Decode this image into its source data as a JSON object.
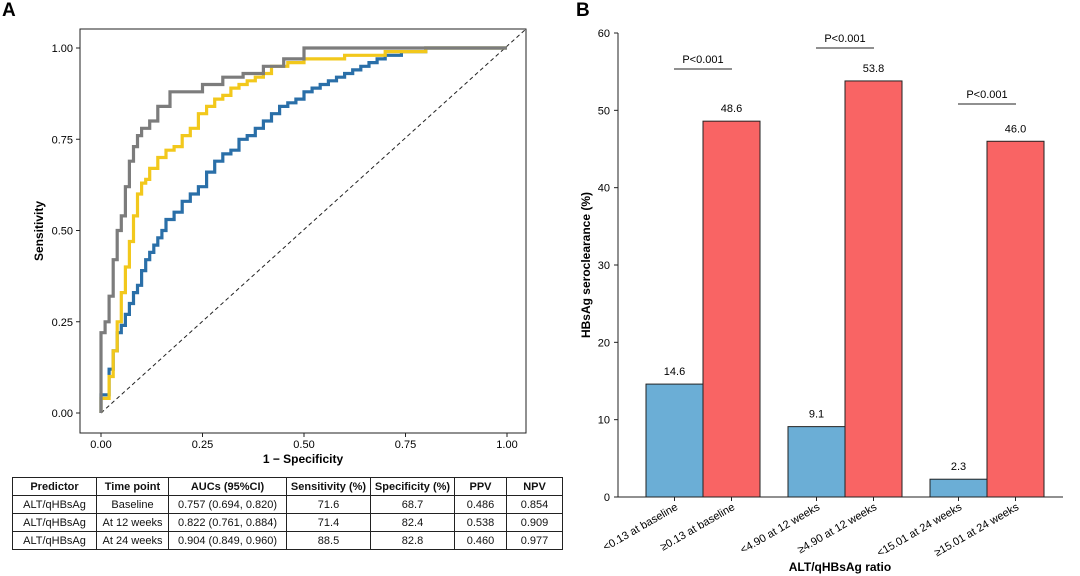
{
  "panel_labels": [
    "A",
    "B"
  ],
  "chart_data": [
    {
      "type": "line",
      "panel": "A",
      "xlabel": "1 − Specificity",
      "ylabel": "Sensitivity",
      "xlim": [
        0,
        1
      ],
      "ylim": [
        0,
        1
      ],
      "x_ticks": [
        "0.00",
        "0.25",
        "0.50",
        "0.75",
        "1.00"
      ],
      "y_ticks": [
        "0.00",
        "0.25",
        "0.50",
        "0.75",
        "1.00"
      ],
      "reference_line": "diagonal dashed",
      "series": [
        {
          "color": "#2a6fa8",
          "x": [
            0.0,
            0.02,
            0.03,
            0.04,
            0.05,
            0.06,
            0.07,
            0.08,
            0.09,
            0.1,
            0.11,
            0.12,
            0.13,
            0.14,
            0.15,
            0.16,
            0.18,
            0.2,
            0.22,
            0.24,
            0.26,
            0.28,
            0.3,
            0.32,
            0.34,
            0.36,
            0.38,
            0.4,
            0.42,
            0.44,
            0.46,
            0.48,
            0.5,
            0.52,
            0.54,
            0.56,
            0.58,
            0.6,
            0.62,
            0.64,
            0.66,
            0.68,
            0.7,
            0.72,
            0.74,
            0.76,
            0.78,
            0.8,
            0.82,
            0.84,
            0.86,
            0.88,
            0.9,
            1.0
          ],
          "y": [
            0.0,
            0.05,
            0.12,
            0.17,
            0.22,
            0.24,
            0.27,
            0.3,
            0.33,
            0.35,
            0.39,
            0.42,
            0.44,
            0.46,
            0.48,
            0.5,
            0.53,
            0.55,
            0.58,
            0.6,
            0.62,
            0.66,
            0.69,
            0.71,
            0.72,
            0.75,
            0.76,
            0.78,
            0.8,
            0.82,
            0.84,
            0.85,
            0.86,
            0.88,
            0.89,
            0.9,
            0.91,
            0.92,
            0.93,
            0.94,
            0.95,
            0.96,
            0.97,
            0.98,
            0.98,
            0.99,
            0.99,
            0.99,
            1.0,
            1.0,
            1.0,
            1.0,
            1.0,
            1.0
          ]
        },
        {
          "color": "#f2c81c",
          "x": [
            0.0,
            0.02,
            0.03,
            0.04,
            0.05,
            0.06,
            0.07,
            0.08,
            0.09,
            0.1,
            0.11,
            0.12,
            0.14,
            0.16,
            0.18,
            0.2,
            0.22,
            0.24,
            0.26,
            0.28,
            0.3,
            0.32,
            0.34,
            0.36,
            0.38,
            0.4,
            0.42,
            0.46,
            0.5,
            0.55,
            0.6,
            0.65,
            0.7,
            0.75,
            0.8,
            0.83,
            1.0
          ],
          "y": [
            0.0,
            0.04,
            0.1,
            0.17,
            0.25,
            0.33,
            0.4,
            0.47,
            0.54,
            0.6,
            0.63,
            0.64,
            0.67,
            0.7,
            0.72,
            0.73,
            0.76,
            0.78,
            0.82,
            0.84,
            0.86,
            0.87,
            0.89,
            0.9,
            0.91,
            0.92,
            0.93,
            0.95,
            0.96,
            0.97,
            0.97,
            0.98,
            0.98,
            0.99,
            0.99,
            1.0,
            1.0
          ]
        },
        {
          "color": "#7c7c7c",
          "x": [
            0.0,
            0.01,
            0.02,
            0.03,
            0.04,
            0.05,
            0.06,
            0.07,
            0.08,
            0.09,
            0.1,
            0.12,
            0.14,
            0.17,
            0.2,
            0.25,
            0.3,
            0.35,
            0.4,
            0.45,
            0.5,
            0.53,
            0.58,
            0.65,
            0.75,
            0.82,
            1.0
          ],
          "y": [
            0.0,
            0.22,
            0.25,
            0.32,
            0.42,
            0.5,
            0.54,
            0.62,
            0.69,
            0.73,
            0.76,
            0.78,
            0.8,
            0.84,
            0.88,
            0.88,
            0.9,
            0.92,
            0.93,
            0.95,
            0.97,
            1.0,
            1.0,
            1.0,
            1.0,
            1.0,
            1.0
          ]
        }
      ],
      "table": {
        "headers": [
          "Predictor",
          "Time point",
          "AUCs (95%CI)",
          "Sensitivity (%)",
          "Specificity (%)",
          "PPV",
          "NPV"
        ],
        "rows": [
          [
            "ALT/qHBsAg",
            "Baseline",
            "0.757 (0.694, 0.820)",
            "71.6",
            "68.7",
            "0.486",
            "0.854"
          ],
          [
            "ALT/qHBsAg",
            "At 12 weeks",
            "0.822 (0.761, 0.884)",
            "71.4",
            "82.4",
            "0.538",
            "0.909"
          ],
          [
            "ALT/qHBsAg",
            "At 24 weeks",
            "0.904 (0.849, 0.960)",
            "88.5",
            "82.8",
            "0.460",
            "0.977"
          ]
        ]
      }
    },
    {
      "type": "bar",
      "panel": "B",
      "xlabel": "ALT/qHBsAg ratio",
      "ylabel": "HBsAg seroclearance (%)",
      "ylim": [
        0,
        60
      ],
      "y_ticks": [
        "0",
        "10",
        "20",
        "30",
        "40",
        "50",
        "60"
      ],
      "categories": [
        "<0.13 at baseline",
        "≥0.13 at baseline",
        "<4.90 at 12 weeks",
        "≥4.90 at 12 weeks",
        "<15.01 at 24 weeks",
        "≥15.01 at 24 weeks"
      ],
      "values": [
        14.6,
        48.6,
        9.1,
        53.8,
        2.3,
        46.0
      ],
      "value_labels": [
        "14.6",
        "48.6",
        "9.1",
        "53.8",
        "2.3",
        "46.0"
      ],
      "bar_colors": [
        "#6baed6",
        "#f96464",
        "#6baed6",
        "#f96464",
        "#6baed6",
        "#f96464"
      ],
      "annotations": [
        "P<0.001",
        "P<0.001",
        "P<0.001"
      ]
    }
  ]
}
